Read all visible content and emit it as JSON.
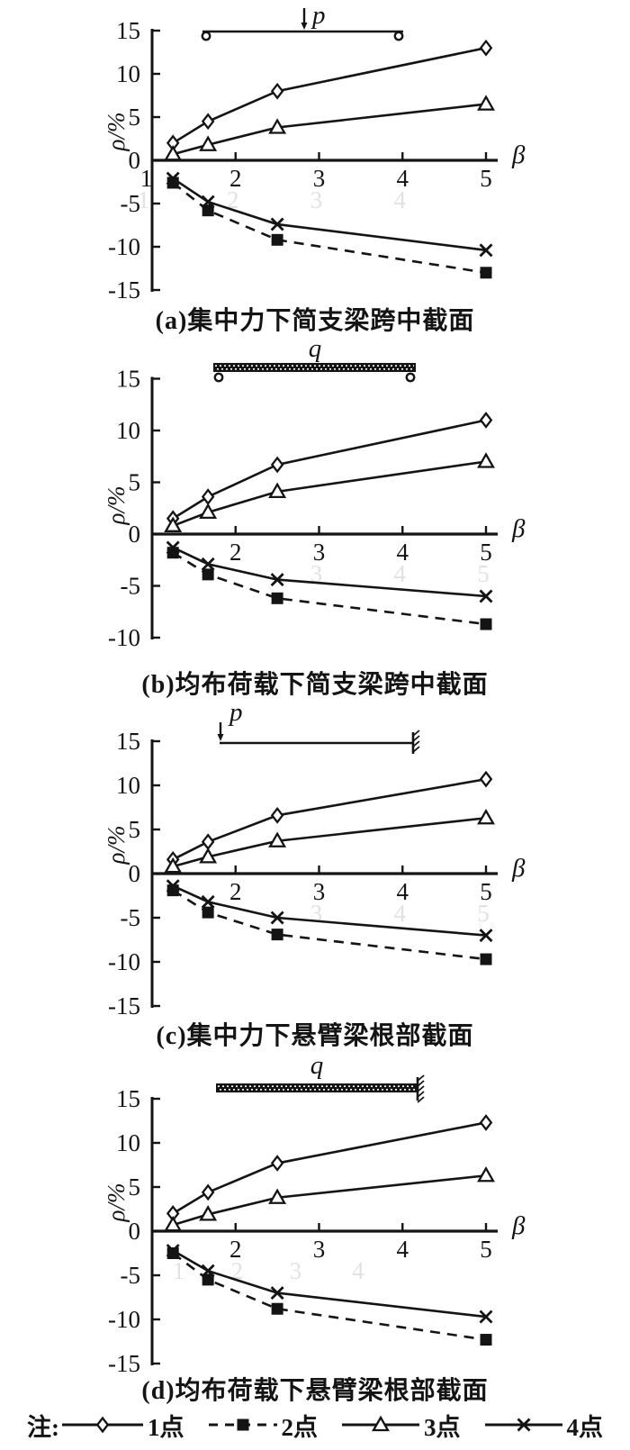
{
  "page": {
    "background": "#ffffff",
    "ink": "#141414",
    "ghost_color": "#e2e2e2"
  },
  "legend": {
    "note_label": "注:",
    "items": [
      {
        "label": "1点",
        "marker": "diamond",
        "line": "solid"
      },
      {
        "label": "2点",
        "marker": "square",
        "line": "dashed"
      },
      {
        "label": "3点",
        "marker": "triangle",
        "line": "solid"
      },
      {
        "label": "4点",
        "marker": "x",
        "line": "solid"
      }
    ]
  },
  "chart_data": [
    {
      "id": "a",
      "type": "line",
      "caption": "(a)集中力下简支梁跨中截面",
      "beam": {
        "kind": "simply_supported_point_load",
        "load_label": "p"
      },
      "xlabel": "β",
      "ylabel": "ρ/%",
      "x": [
        1.25,
        1.67,
        2.5,
        5
      ],
      "xlim": [
        1,
        5
      ],
      "ylim": [
        -15,
        15
      ],
      "xticks": [
        2,
        3,
        4,
        5
      ],
      "yticks": [
        15,
        10,
        5,
        0,
        -5,
        -10,
        -15
      ],
      "extra_xtick": {
        "label": "1",
        "x": 0.93
      },
      "ghost_xticks": [
        {
          "label": "1",
          "x": 0.93
        },
        {
          "label": "2",
          "x": 2
        },
        {
          "label": "3",
          "x": 3
        },
        {
          "label": "4",
          "x": 4
        }
      ],
      "series": [
        {
          "name": "1点",
          "marker": "diamond",
          "line": "solid",
          "values": [
            2.0,
            4.5,
            8.0,
            13.0
          ]
        },
        {
          "name": "2点",
          "marker": "square",
          "line": "dashed",
          "values": [
            -2.6,
            -5.8,
            -9.2,
            -13.0
          ]
        },
        {
          "name": "3点",
          "marker": "triangle",
          "line": "solid",
          "values": [
            0.7,
            1.8,
            3.8,
            6.5
          ]
        },
        {
          "name": "4点",
          "marker": "x",
          "line": "solid",
          "values": [
            -2.1,
            -4.8,
            -7.4,
            -10.4
          ]
        }
      ]
    },
    {
      "id": "b",
      "type": "line",
      "caption": "(b)均布荷载下简支梁跨中截面",
      "beam": {
        "kind": "simply_supported_uniform_load",
        "load_label": "q"
      },
      "xlabel": "β",
      "ylabel": "ρ/%",
      "x": [
        1.25,
        1.67,
        2.5,
        5
      ],
      "xlim": [
        1,
        5
      ],
      "ylim": [
        -10,
        15
      ],
      "xticks": [
        2,
        3,
        4,
        5
      ],
      "yticks": [
        15,
        10,
        5,
        0,
        -5,
        -10
      ],
      "ghost_xticks": [
        {
          "label": "3",
          "x": 3
        },
        {
          "label": "4",
          "x": 4
        },
        {
          "label": "5",
          "x": 5
        }
      ],
      "series": [
        {
          "name": "1点",
          "marker": "diamond",
          "line": "solid",
          "values": [
            1.5,
            3.6,
            6.7,
            11.0
          ]
        },
        {
          "name": "2点",
          "marker": "square",
          "line": "dashed",
          "values": [
            -1.8,
            -3.9,
            -6.2,
            -8.7
          ]
        },
        {
          "name": "3点",
          "marker": "triangle",
          "line": "solid",
          "values": [
            0.8,
            2.1,
            4.1,
            7.0
          ]
        },
        {
          "name": "4点",
          "marker": "x",
          "line": "solid",
          "values": [
            -1.3,
            -2.9,
            -4.4,
            -6.0
          ]
        }
      ]
    },
    {
      "id": "c",
      "type": "line",
      "caption": "(c)集中力下悬臂梁根部截面",
      "beam": {
        "kind": "cantilever_point_load",
        "load_label": "p"
      },
      "xlabel": "β",
      "ylabel": "ρ/%",
      "x": [
        1.25,
        1.67,
        2.5,
        5
      ],
      "xlim": [
        1,
        5
      ],
      "ylim": [
        -15,
        15
      ],
      "xticks": [
        2,
        3,
        4,
        5
      ],
      "yticks": [
        15,
        10,
        5,
        0,
        -5,
        -10,
        -15
      ],
      "ghost_xticks": [
        {
          "label": "3",
          "x": 3
        },
        {
          "label": "4",
          "x": 4
        },
        {
          "label": "5",
          "x": 5
        }
      ],
      "series": [
        {
          "name": "1点",
          "marker": "diamond",
          "line": "solid",
          "values": [
            1.6,
            3.6,
            6.6,
            10.7
          ]
        },
        {
          "name": "2点",
          "marker": "square",
          "line": "dashed",
          "values": [
            -1.9,
            -4.4,
            -6.9,
            -9.7
          ]
        },
        {
          "name": "3点",
          "marker": "triangle",
          "line": "solid",
          "values": [
            0.8,
            1.9,
            3.7,
            6.3
          ]
        },
        {
          "name": "4点",
          "marker": "x",
          "line": "solid",
          "values": [
            -1.4,
            -3.2,
            -5.0,
            -7.0
          ]
        }
      ]
    },
    {
      "id": "d",
      "type": "line",
      "caption": "(d)均布荷载下悬臂梁根部截面",
      "beam": {
        "kind": "cantilever_uniform_load",
        "load_label": "q"
      },
      "xlabel": "β",
      "ylabel": "ρ/%",
      "x": [
        1.25,
        1.67,
        2.5,
        5
      ],
      "xlim": [
        1,
        5
      ],
      "ylim": [
        -15,
        15
      ],
      "xticks": [
        2,
        3,
        4,
        5
      ],
      "yticks": [
        15,
        10,
        5,
        0,
        -5,
        -10,
        -15
      ],
      "ghost_xticks": [
        {
          "label": "1",
          "x": 1.35
        },
        {
          "label": "2",
          "x": 2.05
        },
        {
          "label": "3",
          "x": 2.75
        },
        {
          "label": "4",
          "x": 3.5
        }
      ],
      "series": [
        {
          "name": "1点",
          "marker": "diamond",
          "line": "solid",
          "values": [
            2.0,
            4.4,
            7.7,
            12.3
          ]
        },
        {
          "name": "2点",
          "marker": "square",
          "line": "dashed",
          "values": [
            -2.5,
            -5.5,
            -8.8,
            -12.3
          ]
        },
        {
          "name": "3点",
          "marker": "triangle",
          "line": "solid",
          "values": [
            0.7,
            1.9,
            3.8,
            6.3
          ]
        },
        {
          "name": "4点",
          "marker": "x",
          "line": "solid",
          "values": [
            -2.2,
            -4.5,
            -7.0,
            -9.7
          ]
        }
      ]
    }
  ]
}
